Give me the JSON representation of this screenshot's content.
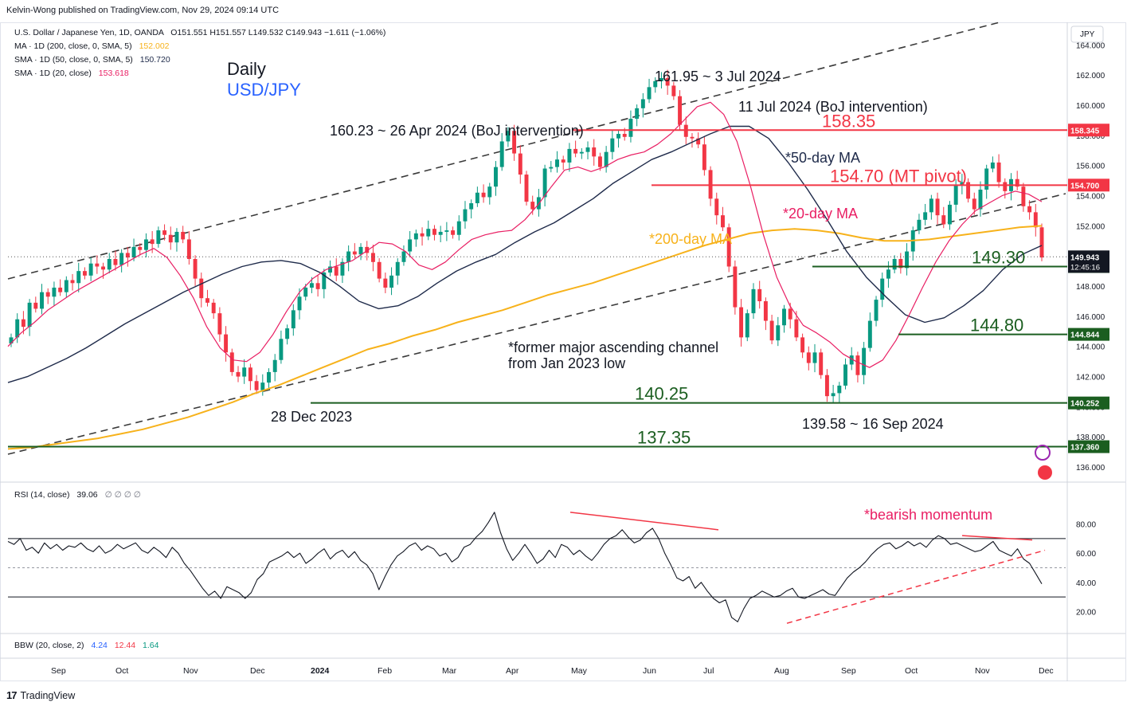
{
  "header": {
    "published": "Kelvin-Wong published on TradingView.com, Nov 29, 2024 09:14 UTC"
  },
  "legend": {
    "symbol": "U.S. Dollar / Japanese Yen, 1D, OANDA",
    "ohlc": "O151.551  H151.557  L149.532  C149.943  −1.611 (−1.06%)",
    "ma200_label": "MA · 1D (200, close, 0, SMA, 5)",
    "ma200_value": "152.002",
    "sma50_label": "SMA · 1D (50, close, 0, SMA, 5)",
    "sma50_value": "150.720",
    "sma20_label": "SMA · 1D (20, close)",
    "sma20_value": "153.618",
    "rsi_label": "RSI (14, close)",
    "rsi_value": "39.06",
    "rsi_extra": "∅ ∅ ∅ ∅",
    "bbw_label": "BBW (20, close, 2)",
    "bbw_v1": "4.24",
    "bbw_v2": "12.44",
    "bbw_v3": "1.64"
  },
  "footer": {
    "brand": "TradingView"
  },
  "colors": {
    "up": "#089981",
    "down": "#f23645",
    "ma200": "#f7b21b",
    "sma50": "#1e2a4a",
    "sma20": "#e91e63",
    "level": "#1b5e20",
    "pivot": "#f23645",
    "title_blue": "#2962ff"
  },
  "chart_data": {
    "type": "candlestick",
    "title": "Daily",
    "subtitle": "USD/JPY",
    "currency": "JPY",
    "ylim": [
      135,
      165.5
    ],
    "y_ticks": [
      "136.000",
      "138.000",
      "140.000",
      "142.000",
      "144.000",
      "146.000",
      "148.000",
      "150.000",
      "152.000",
      "154.000",
      "156.000",
      "158.000",
      "160.000",
      "162.000",
      "164.000"
    ],
    "x_labels": [
      "Sep",
      "Oct",
      "Nov",
      "Dec",
      "2024",
      "Feb",
      "Mar",
      "Apr",
      "May",
      "Jun",
      "Jul",
      "Aug",
      "Sep",
      "Oct",
      "Nov",
      "Dec"
    ],
    "closes": [
      144.6,
      145.8,
      145.3,
      146.9,
      146.5,
      147.6,
      147.3,
      147.9,
      147.6,
      148.4,
      148.2,
      149.0,
      148.7,
      149.5,
      149.3,
      149.1,
      149.8,
      149.4,
      150.2,
      149.9,
      150.6,
      150.4,
      151.1,
      150.8,
      151.7,
      151.4,
      150.9,
      151.6,
      151.1,
      149.8,
      148.5,
      147.2,
      146.9,
      146.2,
      144.8,
      143.6,
      142.3,
      142.0,
      142.6,
      141.7,
      141.1,
      141.6,
      142.3,
      143.1,
      144.5,
      145.2,
      146.4,
      147.3,
      147.9,
      148.2,
      147.8,
      148.9,
      149.3,
      148.7,
      149.6,
      150.3,
      150.1,
      150.6,
      150.2,
      149.6,
      148.5,
      147.9,
      148.7,
      149.6,
      150.3,
      151.1,
      151.5,
      151.3,
      151.8,
      151.4,
      151.6,
      151.7,
      151.4,
      152.3,
      153.1,
      153.5,
      154.2,
      153.9,
      154.6,
      155.9,
      157.6,
      158.3,
      156.8,
      155.4,
      153.6,
      153.1,
      153.9,
      155.8,
      155.9,
      156.4,
      156.2,
      157.1,
      156.8,
      156.9,
      157.2,
      156.6,
      155.9,
      156.9,
      157.8,
      158.1,
      157.9,
      159.1,
      159.8,
      160.4,
      161.2,
      161.6,
      161.8,
      161.3,
      160.6,
      158.7,
      157.9,
      157.8,
      157.4,
      155.7,
      153.8,
      152.7,
      151.9,
      149.3,
      146.6,
      144.6,
      146.2,
      147.8,
      147.0,
      145.7,
      144.4,
      145.4,
      146.5,
      145.8,
      144.6,
      143.6,
      142.9,
      143.6,
      142.1,
      140.7,
      140.9,
      141.4,
      142.8,
      143.4,
      142.1,
      143.9,
      145.7,
      147.1,
      148.5,
      149.1,
      149.8,
      149.2,
      150.3,
      151.7,
      152.4,
      152.9,
      153.8,
      152.7,
      152.1,
      153.4,
      154.7,
      154.9,
      153.8,
      153.1,
      154.4,
      155.8,
      156.2,
      154.9,
      154.3,
      155.1,
      154.6,
      153.3,
      152.9,
      151.9,
      149.9
    ],
    "ma200": [
      137.2,
      137.3,
      137.5,
      137.7,
      137.9,
      138.2,
      138.5,
      138.9,
      139.3,
      139.8,
      140.3,
      140.9,
      141.4,
      142.0,
      142.6,
      143.2,
      143.8,
      144.2,
      144.7,
      145.1,
      145.6,
      146.0,
      146.4,
      146.9,
      147.4,
      147.8,
      148.2,
      148.7,
      149.2,
      149.7,
      150.2,
      150.7,
      151.1,
      151.5,
      151.7,
      151.8,
      151.7,
      151.5,
      151.2,
      151.0,
      151.0,
      151.1,
      151.3,
      151.5,
      151.7,
      151.9,
      152.0
    ],
    "sma50": [
      141.6,
      142.0,
      142.6,
      143.2,
      143.9,
      144.7,
      145.5,
      146.2,
      146.9,
      147.6,
      148.2,
      148.8,
      149.3,
      149.6,
      149.7,
      149.5,
      148.9,
      148.0,
      147.0,
      146.5,
      146.7,
      147.3,
      148.2,
      149.0,
      149.6,
      150.1,
      150.9,
      151.6,
      152.2,
      153.0,
      153.8,
      154.8,
      155.6,
      156.4,
      156.9,
      157.5,
      158.1,
      158.6,
      158.6,
      157.8,
      156.2,
      154.4,
      152.4,
      150.3,
      148.6,
      147.3,
      146.1,
      145.6,
      145.9,
      146.7,
      147.7,
      149.1,
      150.1,
      150.7
    ],
    "sma20": [
      144.0,
      144.9,
      145.6,
      146.4,
      147.0,
      147.6,
      148.1,
      148.6,
      149.1,
      149.6,
      150.1,
      150.5,
      149.9,
      148.7,
      147.2,
      145.3,
      143.9,
      143.1,
      143.0,
      143.6,
      144.8,
      146.3,
      147.6,
      148.5,
      149.1,
      149.4,
      149.7,
      150.3,
      150.9,
      150.8,
      150.3,
      149.4,
      149.1,
      149.6,
      150.4,
      151.1,
      151.4,
      151.6,
      151.7,
      152.4,
      153.4,
      154.6,
      155.7,
      155.9,
      155.6,
      155.9,
      156.4,
      156.7,
      156.9,
      157.4,
      158.1,
      159.0,
      159.9,
      160.2,
      159.4,
      157.6,
      154.7,
      151.4,
      148.6,
      146.7,
      145.4,
      144.9,
      144.3,
      143.5,
      143.0,
      142.6,
      143.1,
      144.4,
      146.1,
      147.9,
      149.6,
      151.0,
      152.1,
      153.0,
      153.5,
      154.0,
      154.3,
      154.1,
      153.6
    ],
    "rsi": {
      "ylim": [
        5,
        95
      ],
      "ticks": [
        "80.00",
        "60.00",
        "40.00",
        "20.00"
      ],
      "bands": [
        70,
        30
      ],
      "values": [
        68,
        66,
        70,
        62,
        64,
        60,
        67,
        63,
        66,
        62,
        65,
        64,
        67,
        63,
        61,
        65,
        60,
        62,
        66,
        63,
        65,
        67,
        62,
        60,
        64,
        61,
        57,
        64,
        60,
        53,
        48,
        42,
        36,
        31,
        34,
        29,
        37,
        35,
        33,
        29,
        33,
        42,
        46,
        54,
        56,
        58,
        61,
        57,
        60,
        53,
        56,
        60,
        63,
        56,
        60,
        62,
        57,
        61,
        55,
        52,
        46,
        35,
        44,
        52,
        58,
        61,
        65,
        67,
        62,
        65,
        63,
        58,
        60,
        54,
        57,
        64,
        66,
        71,
        75,
        81,
        88,
        74,
        63,
        55,
        60,
        66,
        60,
        53,
        56,
        62,
        57,
        66,
        64,
        59,
        62,
        58,
        55,
        60,
        66,
        70,
        72,
        76,
        71,
        67,
        69,
        74,
        77,
        70,
        60,
        52,
        43,
        41,
        44,
        36,
        40,
        34,
        29,
        26,
        28,
        16,
        13,
        22,
        29,
        31,
        34,
        32,
        30,
        31,
        34,
        36,
        30,
        29,
        31,
        33,
        35,
        32,
        31,
        37,
        43,
        47,
        50,
        54,
        59,
        63,
        66,
        67,
        63,
        65,
        68,
        65,
        67,
        64,
        69,
        72,
        70,
        66,
        67,
        65,
        63,
        61,
        62,
        65,
        68,
        62,
        60,
        58,
        63,
        56,
        53,
        46,
        39
      ],
      "annotations": [
        "*bearish momentum"
      ]
    },
    "levels": [
      {
        "value": 158.35,
        "label": "158.35",
        "axis_label": "158.345"
      },
      {
        "value": 154.7,
        "label": "154.70 (MT pivot)",
        "axis_label": "154.700"
      },
      {
        "value": 149.3,
        "label": "149.30",
        "axis_label": "149.288"
      },
      {
        "value": 144.8,
        "label": "144.80",
        "axis_label": "144.844"
      },
      {
        "value": 140.25,
        "label": "140.25",
        "axis_label": "140.252"
      },
      {
        "value": 137.35,
        "label": "137.35",
        "axis_label": "137.360"
      }
    ],
    "last_price": {
      "value": "149.943",
      "countdown": "12:45:16"
    },
    "annotations": {
      "peak": "161.95 ~ 3 Jul 2024",
      "intervention_jul": "11 Jul 2024 (BoJ intervention)",
      "intervention_apr": "160.23 ~ 26 Apr 2024 (BoJ intervention)",
      "ma50": "*50-day MA",
      "ma20": "*20-day MA",
      "ma200": "*200-day MA",
      "channel_line1": "*former major ascending channel",
      "channel_line2": "from Jan 2023 low",
      "dec_low": "28 Dec 2023",
      "sep_low": "139.58 ~ 16 Sep 2024"
    }
  }
}
